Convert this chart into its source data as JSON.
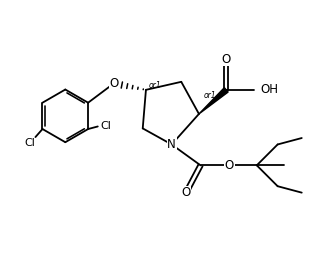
{
  "bg_color": "#ffffff",
  "line_color": "#000000",
  "lw": 1.3,
  "figsize": [
    3.24,
    2.6
  ],
  "dpi": 100,
  "xlim": [
    0,
    10
  ],
  "ylim": [
    0,
    8
  ]
}
